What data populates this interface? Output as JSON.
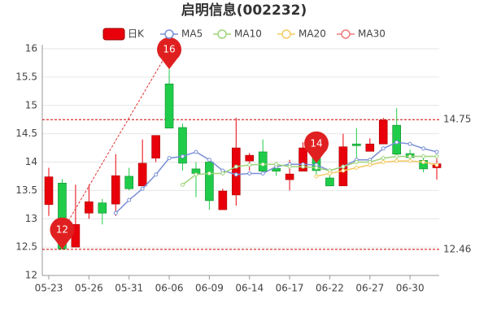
{
  "chart_data": {
    "type": "candlestick",
    "title": "启明信息(002232)",
    "categories": [
      "05-23",
      null,
      null,
      "05-26",
      null,
      null,
      "05-31",
      null,
      null,
      "06-06",
      null,
      null,
      "06-09",
      null,
      null,
      "06-14",
      null,
      null,
      "06-17",
      null,
      null,
      "06-22",
      null,
      null,
      "06-27",
      null,
      null,
      "06-30",
      null,
      null
    ],
    "series": [
      {
        "name": "日K",
        "color": "#e8000b",
        "down_color": "#1fcc4a",
        "open": [
          13.25,
          13.63,
          12.5,
          13.1,
          13.28,
          13.26,
          13.75,
          13.58,
          14.07,
          15.38,
          14.61,
          13.88,
          14.0,
          13.16,
          13.42,
          14.02,
          14.18,
          13.89,
          13.69,
          13.84,
          14.28,
          13.72,
          13.58,
          14.32,
          14.19,
          14.32,
          14.65,
          14.15,
          14.03,
          13.9
        ],
        "high": [
          13.9,
          13.7,
          13.6,
          13.6,
          13.35,
          14.14,
          13.9,
          14.4,
          14.47,
          15.64,
          14.68,
          14.0,
          14.04,
          13.53,
          14.78,
          14.16,
          14.4,
          14.0,
          14.04,
          14.35,
          14.4,
          13.8,
          14.5,
          14.6,
          14.42,
          14.78,
          14.95,
          14.22,
          14.1,
          14.06
        ],
        "low": [
          13.05,
          12.46,
          12.5,
          13.0,
          12.9,
          13.05,
          13.5,
          13.58,
          14.0,
          14.6,
          13.85,
          13.38,
          13.16,
          13.16,
          13.23,
          13.85,
          13.78,
          13.76,
          13.5,
          13.84,
          13.78,
          13.58,
          13.58,
          14.0,
          14.19,
          14.32,
          14.06,
          14.03,
          13.82,
          13.69
        ],
        "close": [
          13.74,
          12.47,
          12.9,
          13.3,
          13.1,
          13.76,
          13.53,
          13.98,
          14.47,
          14.6,
          13.98,
          13.8,
          13.32,
          13.49,
          14.25,
          14.12,
          13.84,
          13.84,
          13.79,
          14.25,
          13.85,
          13.58,
          14.27,
          14.29,
          14.32,
          14.74,
          14.14,
          14.08,
          13.88,
          13.97
        ]
      },
      {
        "name": "MA5",
        "color": "#7a8fd6",
        "values": [
          null,
          null,
          null,
          null,
          null,
          13.1,
          13.33,
          13.53,
          13.78,
          14.07,
          14.1,
          14.18,
          14.04,
          13.85,
          13.78,
          13.8,
          13.8,
          13.92,
          13.96,
          13.96,
          13.95,
          13.85,
          13.92,
          14.04,
          14.04,
          14.24,
          14.35,
          14.32,
          14.24,
          14.18
        ]
      },
      {
        "name": "MA10",
        "color": "#9dd47b",
        "values": [
          null,
          null,
          null,
          null,
          null,
          null,
          null,
          null,
          null,
          null,
          13.6,
          13.78,
          13.8,
          13.8,
          13.92,
          13.95,
          13.96,
          13.96,
          13.92,
          13.92,
          13.9,
          13.85,
          13.92,
          14.0,
          14.0,
          14.07,
          14.1,
          14.1,
          14.1,
          14.1
        ]
      },
      {
        "name": "MA20",
        "color": "#f4cb62",
        "values": [
          null,
          null,
          null,
          null,
          null,
          null,
          null,
          null,
          null,
          null,
          null,
          null,
          null,
          null,
          null,
          null,
          null,
          null,
          null,
          null,
          13.75,
          13.8,
          13.85,
          13.9,
          13.95,
          14.0,
          14.02,
          14.02,
          14.0,
          13.95
        ]
      },
      {
        "name": "MA30",
        "color": "#ee7b7b",
        "values": [
          null,
          null,
          null,
          null,
          null,
          null,
          null,
          null,
          null,
          null,
          null,
          null,
          null,
          null,
          null,
          null,
          null,
          null,
          null,
          null,
          null,
          null,
          null,
          null,
          null,
          null,
          null,
          null,
          null,
          null
        ]
      }
    ],
    "ylim": [
      12,
      16
    ],
    "yticks": [
      12,
      12.5,
      13,
      13.5,
      14,
      14.5,
      15,
      15.5,
      16
    ],
    "grid": true,
    "hlines": [
      14.75,
      12.46
    ],
    "pins": [
      {
        "label": "16",
        "index": 9,
        "value": 15.64
      },
      {
        "label": "12",
        "index": 1,
        "value": 12.46
      },
      {
        "label": "14",
        "index": 20,
        "value": 13.98
      }
    ]
  }
}
